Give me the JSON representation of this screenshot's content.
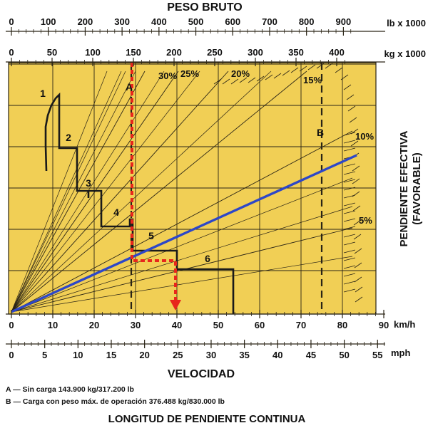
{
  "chart_data": {
    "type": "line",
    "title_top": "PESO BRUTO",
    "title_bottom": "VELOCIDAD",
    "footer_title": "LONGITUD DE PENDIENTE CONTINUA",
    "ylabel_line1": "PENDIENTE EFECTIVA",
    "ylabel_line2": "(FAVORABLE)",
    "axes": {
      "lb": {
        "unit": "lb x 1000",
        "ticks": [
          0,
          100,
          200,
          300,
          400,
          500,
          600,
          700,
          800,
          900
        ]
      },
      "kg": {
        "unit": "kg x 1000",
        "ticks": [
          0,
          50,
          100,
          150,
          200,
          250,
          300,
          350,
          400
        ]
      },
      "kmh": {
        "unit": "km/h",
        "ticks": [
          0,
          10,
          20,
          30,
          40,
          50,
          60,
          70,
          80,
          90
        ],
        "range": [
          0,
          90
        ]
      },
      "mph": {
        "unit": "mph",
        "ticks": [
          0,
          5,
          10,
          15,
          20,
          25,
          30,
          35,
          40,
          45,
          50,
          55
        ]
      }
    },
    "grade_lines": [
      {
        "label": "30%",
        "end_kmh": 37
      },
      {
        "label": "25%",
        "end_kmh": 45
      },
      {
        "label": "20%",
        "end_kmh": 57
      },
      {
        "label": "15%",
        "end_kmh": 77
      },
      {
        "label": "10%",
        "end_kmh": 85
      },
      {
        "label": "5%",
        "end_kmh": 85
      }
    ],
    "gear_labels": [
      "1",
      "2",
      "3",
      "4",
      "5",
      "6"
    ],
    "markers": [
      {
        "label": "A",
        "kmh": 29.5
      },
      {
        "label": "B",
        "kmh": 76
      }
    ],
    "example": {
      "weight_kg": 150,
      "speed_kmh": 40
    },
    "legend": [
      "A — Sin carga 143.900 kg/317.200 lb",
      "B — Carga con peso máx. de operación 376.488 kg/830.000 lb"
    ],
    "colors": {
      "background": "#f1cf55",
      "grid": "#2a2416",
      "curve": "#1a1a1a",
      "blue_line": "#2d47c8",
      "example_path": "#e8261c"
    }
  }
}
